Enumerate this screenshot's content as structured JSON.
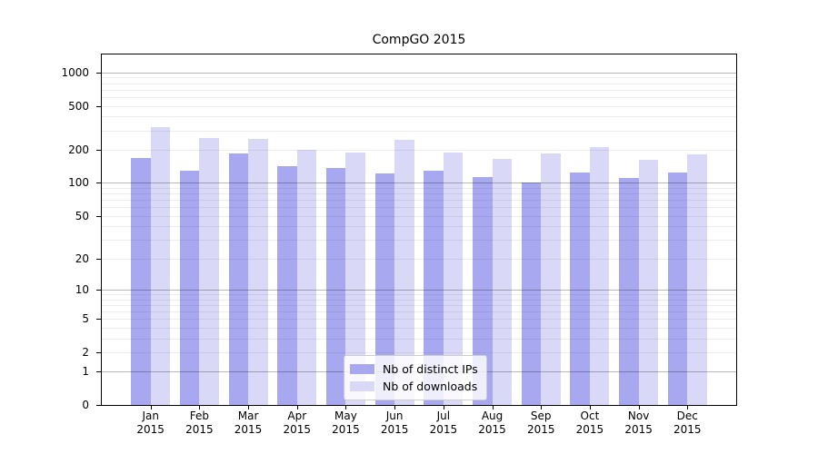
{
  "chart": {
    "title": "CompGO 2015",
    "y_axis": {
      "tick_labels": [
        "1000",
        "500",
        "200",
        "100",
        "50",
        "20",
        "10",
        "5",
        "2",
        "1",
        "0"
      ]
    },
    "x_axis": {
      "year_line": "2015"
    }
  },
  "legend": {
    "entries": [
      {
        "label": "Nb of distinct IPs",
        "swatch": "dark-periwinkle"
      },
      {
        "label": "Nb of downloads",
        "swatch": "light-lavender"
      }
    ]
  },
  "chart_data": {
    "type": "bar",
    "title": "CompGO 2015",
    "categories": [
      "Jan 2015",
      "Feb 2015",
      "Mar 2015",
      "Apr 2015",
      "May 2015",
      "Jun 2015",
      "Jul 2015",
      "Aug 2015",
      "Sep 2015",
      "Oct 2015",
      "Nov 2015",
      "Dec 2015"
    ],
    "series": [
      {
        "name": "Nb of distinct IPs",
        "color": "#a8a8f0",
        "values": [
          170,
          130,
          185,
          143,
          138,
          122,
          130,
          113,
          101,
          125,
          110,
          124
        ]
      },
      {
        "name": "Nb of downloads",
        "color": "#d9d9f7",
        "values": [
          320,
          255,
          250,
          200,
          190,
          245,
          190,
          165,
          185,
          212,
          163,
          182
        ]
      }
    ],
    "yscale": "log1p",
    "ylim": [
      0,
      1455
    ],
    "yticks": [
      1000,
      500,
      200,
      100,
      50,
      20,
      10,
      5,
      2,
      1,
      0
    ],
    "grid_major_at": [
      1,
      10,
      100,
      1000
    ],
    "grid": true,
    "legend_position": "lower center",
    "xlabel": "",
    "ylabel": ""
  }
}
